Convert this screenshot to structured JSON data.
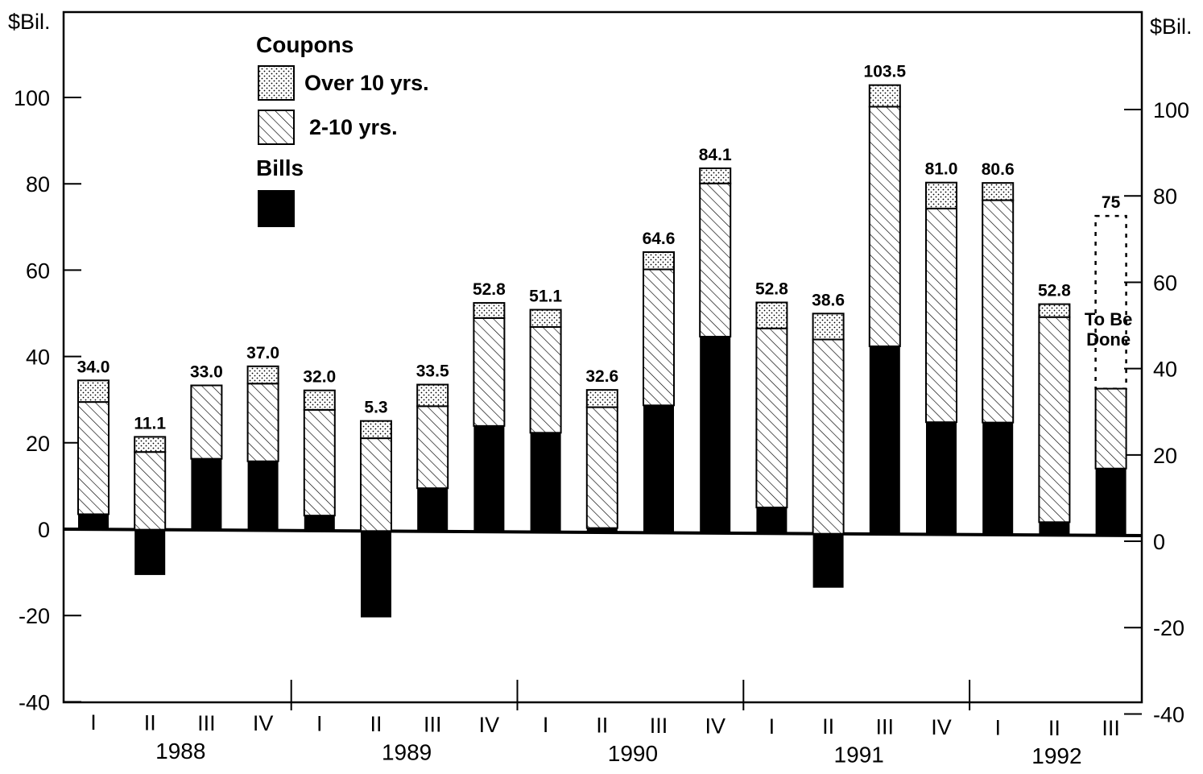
{
  "chart_data": {
    "type": "bar",
    "stacked": true,
    "left_unit_label": "$Bil.",
    "right_unit_label": "$Bil.",
    "ylim": [
      -40,
      110
    ],
    "left_ticks": [
      "100",
      "80",
      "60",
      "40",
      "20",
      "0",
      "-20",
      "-40"
    ],
    "right_ticks": [
      "100",
      "80",
      "60",
      "40",
      "20",
      "0",
      "-20",
      "-40"
    ],
    "legend": {
      "group1_title": "Coupons",
      "group2_title": "Bills",
      "position": "top-left",
      "entries": [
        {
          "key": "over10",
          "label": "Over 10 yrs."
        },
        {
          "key": "two_to_ten",
          "label": "2-10 yrs."
        },
        {
          "key": "bills",
          "label": ""
        }
      ]
    },
    "series": [
      {
        "key": "bills",
        "fill": "solid-black"
      },
      {
        "key": "two_to_ten",
        "fill": "diagonal-hatch"
      },
      {
        "key": "over10",
        "fill": "dotted"
      }
    ],
    "categories": [
      "I",
      "II",
      "III",
      "IV",
      "I",
      "II",
      "III",
      "IV",
      "I",
      "II",
      "III",
      "IV",
      "I",
      "II",
      "III",
      "IV",
      "I",
      "II",
      "III"
    ],
    "years": [
      "1988",
      "1989",
      "1990",
      "1991",
      "1992"
    ],
    "bars": [
      {
        "q": "I",
        "bills": 3.5,
        "two_to_ten": 26.0,
        "over10": 5.0,
        "label": "34.0"
      },
      {
        "q": "II",
        "bills": -10.5,
        "two_to_ten": 18.0,
        "over10": 3.5,
        "label": "11.1"
      },
      {
        "q": "III",
        "bills": 16.5,
        "two_to_ten": 17.0,
        "over10": 0.0,
        "label": "33.0"
      },
      {
        "q": "IV",
        "bills": 16.0,
        "two_to_ten": 18.0,
        "over10": 4.0,
        "label": "37.0"
      },
      {
        "q": "I",
        "bills": 3.5,
        "two_to_ten": 24.5,
        "over10": 4.5,
        "label": "32.0"
      },
      {
        "q": "II",
        "bills": -20.0,
        "two_to_ten": 21.5,
        "over10": 4.0,
        "label": "5.3"
      },
      {
        "q": "III",
        "bills": 10.0,
        "two_to_ten": 19.0,
        "over10": 5.0,
        "label": "33.5"
      },
      {
        "q": "IV",
        "bills": 24.5,
        "two_to_ten": 25.0,
        "over10": 3.5,
        "label": "52.8"
      },
      {
        "q": "I",
        "bills": 23.0,
        "two_to_ten": 24.5,
        "over10": 4.0,
        "label": "51.1"
      },
      {
        "q": "II",
        "bills": 1.0,
        "two_to_ten": 28.0,
        "over10": 4.0,
        "label": "32.6"
      },
      {
        "q": "III",
        "bills": 29.5,
        "two_to_ten": 31.5,
        "over10": 4.0,
        "label": "64.6"
      },
      {
        "q": "IV",
        "bills": 45.5,
        "two_to_ten": 35.5,
        "over10": 3.5,
        "label": "84.1"
      },
      {
        "q": "I",
        "bills": 6.0,
        "two_to_ten": 41.5,
        "over10": 6.0,
        "label": "52.8"
      },
      {
        "q": "II",
        "bills": -12.5,
        "two_to_ten": 45.0,
        "over10": 6.0,
        "label": "38.6"
      },
      {
        "q": "III",
        "bills": 43.5,
        "two_to_ten": 55.5,
        "over10": 5.0,
        "label": "103.5"
      },
      {
        "q": "IV",
        "bills": 26.0,
        "two_to_ten": 49.5,
        "over10": 6.0,
        "label": "81.0"
      },
      {
        "q": "I",
        "bills": 26.0,
        "two_to_ten": 51.5,
        "over10": 4.0,
        "label": "80.6"
      },
      {
        "q": "II",
        "bills": 3.0,
        "two_to_ten": 47.5,
        "over10": 3.0,
        "label": "52.8"
      },
      {
        "q": "III",
        "bills": 15.5,
        "two_to_ten": 18.5,
        "over10": 0.0,
        "label": "75",
        "planned_top": 74.0,
        "note": [
          "To Be",
          "Done"
        ]
      }
    ],
    "baseline_tilt": 1.5,
    "grid": false
  }
}
